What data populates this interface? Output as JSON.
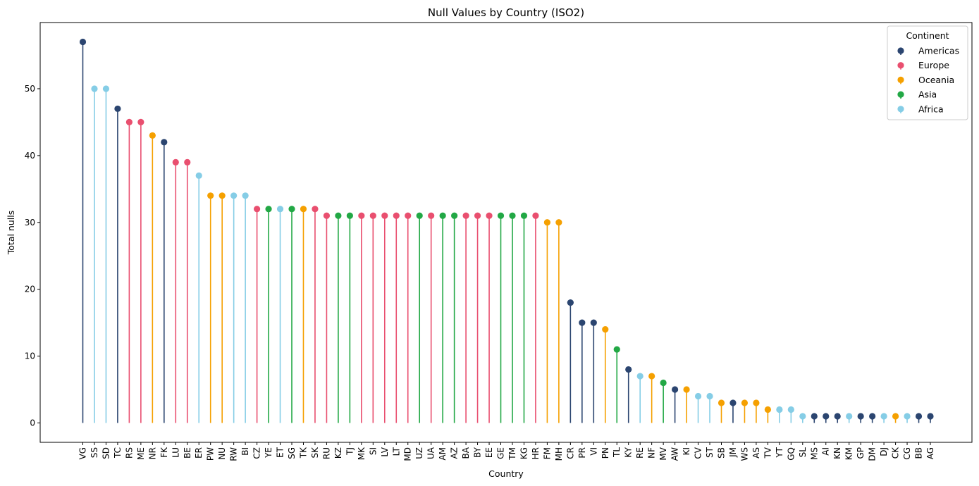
{
  "chart_data": {
    "type": "lollipop",
    "title": "Null Values by Country (ISO2)",
    "xlabel": "Country",
    "ylabel": "Total nulls",
    "ylim": [
      -2.9,
      59.9
    ],
    "yticks": [
      0,
      10,
      20,
      30,
      40,
      50
    ],
    "grid": false,
    "legend": {
      "title": "Continent",
      "placement": "top-right",
      "entries": [
        {
          "name": "Americas",
          "color": "#2b4570"
        },
        {
          "name": "Europe",
          "color": "#e94f6f"
        },
        {
          "name": "Oceania",
          "color": "#f5a000"
        },
        {
          "name": "Asia",
          "color": "#22a845"
        },
        {
          "name": "Africa",
          "color": "#85cde6"
        }
      ]
    },
    "categories": [
      "VG",
      "SS",
      "SD",
      "TC",
      "RS",
      "ME",
      "NR",
      "FK",
      "LU",
      "BE",
      "ER",
      "PW",
      "NU",
      "RW",
      "BI",
      "CZ",
      "YE",
      "ET",
      "SG",
      "TK",
      "SK",
      "RU",
      "KZ",
      "TJ",
      "MK",
      "SI",
      "LV",
      "LT",
      "MD",
      "UZ",
      "UA",
      "AM",
      "AZ",
      "BA",
      "BY",
      "EE",
      "GE",
      "TM",
      "KG",
      "HR",
      "FM",
      "MH",
      "CR",
      "PR",
      "VI",
      "PN",
      "TL",
      "KY",
      "RE",
      "NF",
      "MV",
      "AW",
      "KI",
      "CV",
      "ST",
      "SB",
      "JM",
      "WS",
      "AS",
      "TV",
      "YT",
      "GQ",
      "SL",
      "MS",
      "AI",
      "KN",
      "KM",
      "GP",
      "DM",
      "DJ",
      "CK",
      "CG",
      "BB",
      "AG"
    ],
    "values": [
      57,
      50,
      50,
      47,
      45,
      45,
      43,
      42,
      39,
      39,
      37,
      34,
      34,
      34,
      34,
      32,
      32,
      32,
      32,
      32,
      32,
      31,
      31,
      31,
      31,
      31,
      31,
      31,
      31,
      31,
      31,
      31,
      31,
      31,
      31,
      31,
      31,
      31,
      31,
      31,
      30,
      30,
      18,
      15,
      15,
      14,
      11,
      8,
      7,
      7,
      6,
      5,
      5,
      4,
      4,
      3,
      3,
      3,
      3,
      2,
      2,
      2,
      1,
      1,
      1,
      1,
      1,
      1,
      1,
      1,
      1,
      1,
      1,
      1
    ],
    "continents": [
      "Americas",
      "Africa",
      "Africa",
      "Americas",
      "Europe",
      "Europe",
      "Oceania",
      "Americas",
      "Europe",
      "Europe",
      "Africa",
      "Oceania",
      "Oceania",
      "Africa",
      "Africa",
      "Europe",
      "Asia",
      "Africa",
      "Asia",
      "Oceania",
      "Europe",
      "Europe",
      "Asia",
      "Asia",
      "Europe",
      "Europe",
      "Europe",
      "Europe",
      "Europe",
      "Asia",
      "Europe",
      "Asia",
      "Asia",
      "Europe",
      "Europe",
      "Europe",
      "Asia",
      "Asia",
      "Asia",
      "Europe",
      "Oceania",
      "Oceania",
      "Americas",
      "Americas",
      "Americas",
      "Oceania",
      "Asia",
      "Americas",
      "Africa",
      "Oceania",
      "Asia",
      "Americas",
      "Oceania",
      "Africa",
      "Africa",
      "Oceania",
      "Americas",
      "Oceania",
      "Oceania",
      "Oceania",
      "Africa",
      "Africa",
      "Africa",
      "Americas",
      "Americas",
      "Americas",
      "Africa",
      "Americas",
      "Americas",
      "Africa",
      "Oceania",
      "Africa",
      "Americas",
      "Americas"
    ]
  }
}
